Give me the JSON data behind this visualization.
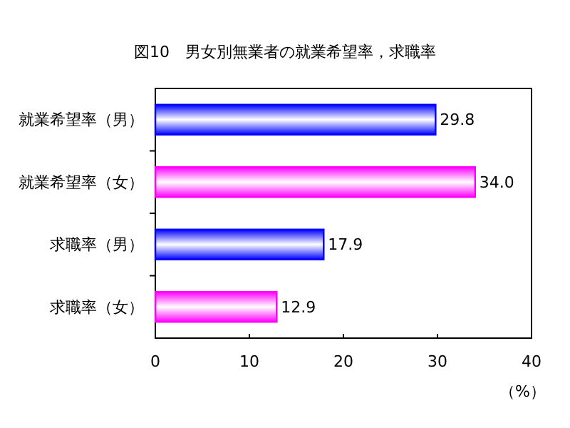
{
  "chart_data": {
    "type": "bar",
    "orientation": "horizontal",
    "title": "図10　男女別無業者の就業希望率，求職率",
    "xlabel": "（%）",
    "categories": [
      "就業希望率（男）",
      "就業希望率（女）",
      "求職率（男）",
      "求職率（女）"
    ],
    "values": [
      29.8,
      34.0,
      17.9,
      12.9
    ],
    "colors": [
      "#0000ff",
      "#ff00ff",
      "#0000ff",
      "#ff00ff"
    ],
    "value_labels": [
      "29.8",
      "34.0",
      "17.9",
      "12.9"
    ],
    "xlim": [
      0,
      40
    ],
    "xticks": [
      0,
      10,
      20,
      30,
      40
    ],
    "grid": false
  }
}
